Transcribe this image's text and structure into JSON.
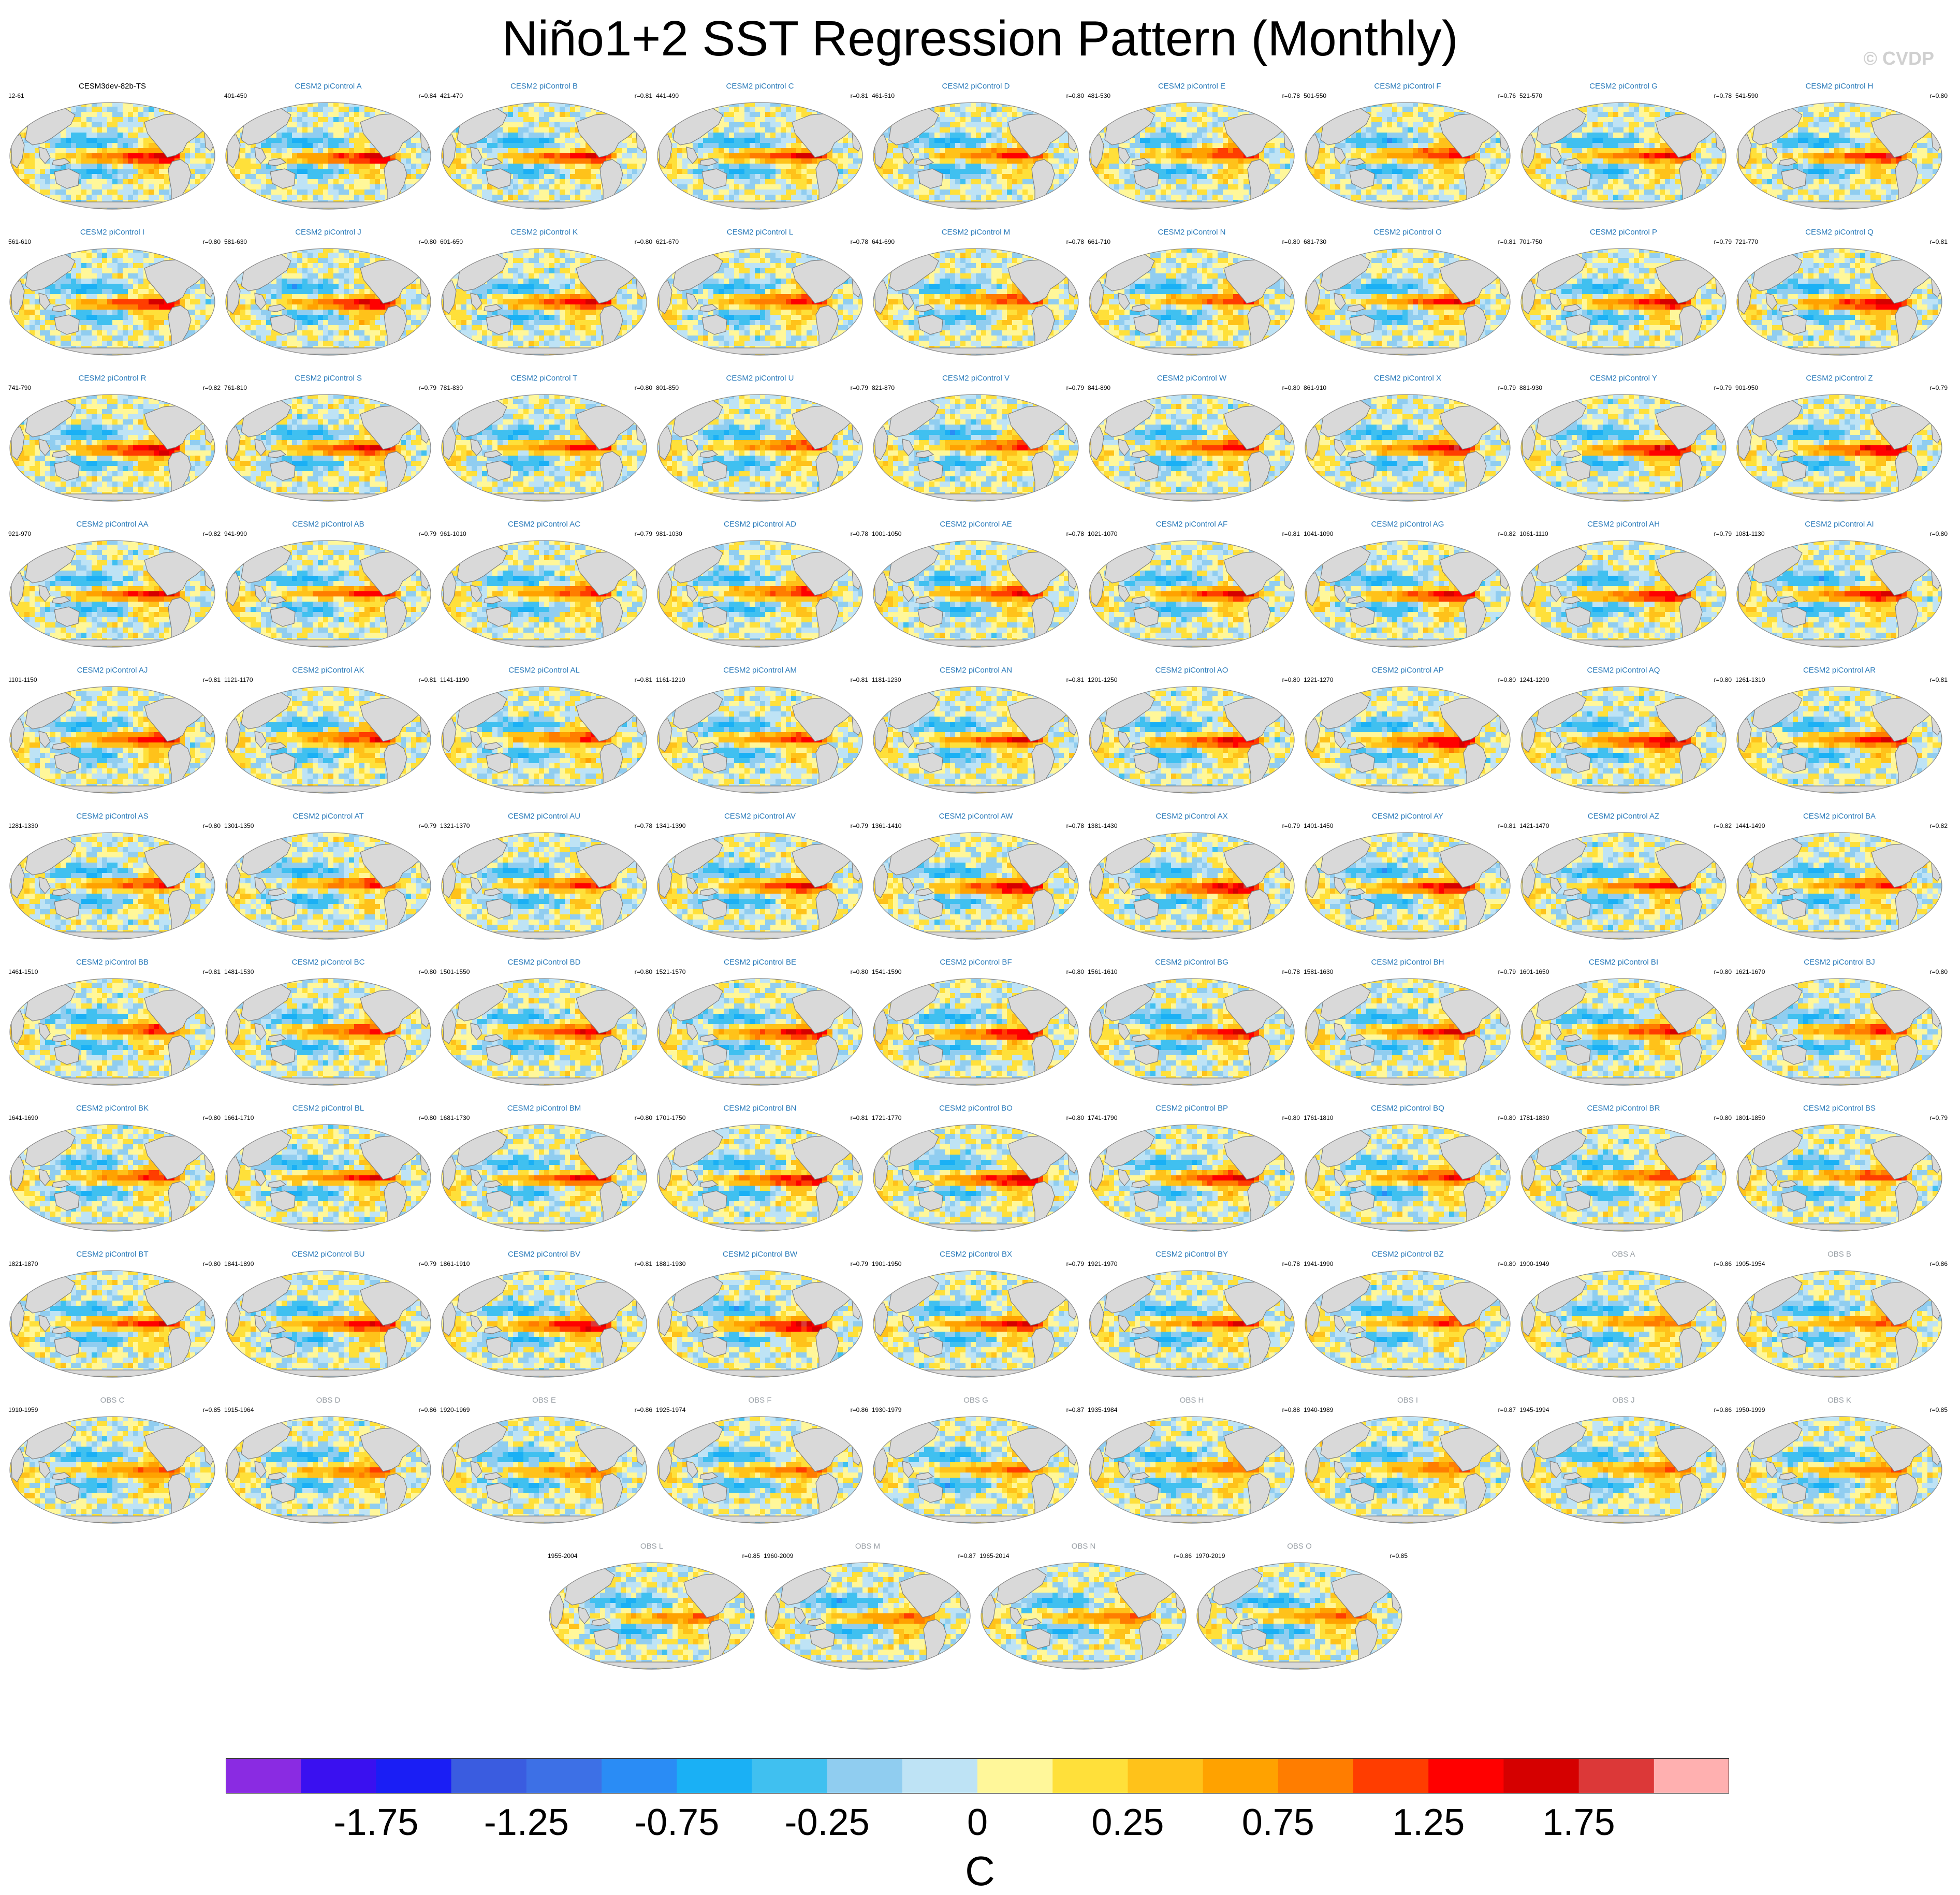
{
  "title": "Niño1+2 SST Regression Pattern (Monthly)",
  "copyright": "© CVDP",
  "colors": {
    "land": "#d9d9d9",
    "coast": "#7d7d7d",
    "model_title": "#2b7bba",
    "obs_title": "#9aa0a6",
    "ref_title": "#000000"
  },
  "chart_data": {
    "type": "heatmap",
    "map_projection": "robinson",
    "panels": [
      {
        "title": "CESM3dev-82b-TS",
        "left": "12-61",
        "right": "",
        "kind": "ref"
      },
      {
        "title": "CESM2 piControl A",
        "left": "401-450",
        "right": "r=0.84",
        "kind": "model"
      },
      {
        "title": "CESM2 piControl B",
        "left": "421-470",
        "right": "r=0.81",
        "kind": "model"
      },
      {
        "title": "CESM2 piControl C",
        "left": "441-490",
        "right": "r=0.81",
        "kind": "model"
      },
      {
        "title": "CESM2 piControl D",
        "left": "461-510",
        "right": "r=0.80",
        "kind": "model"
      },
      {
        "title": "CESM2 piControl E",
        "left": "481-530",
        "right": "r=0.78",
        "kind": "model"
      },
      {
        "title": "CESM2 piControl F",
        "left": "501-550",
        "right": "r=0.76",
        "kind": "model"
      },
      {
        "title": "CESM2 piControl G",
        "left": "521-570",
        "right": "r=0.78",
        "kind": "model"
      },
      {
        "title": "CESM2 piControl H",
        "left": "541-590",
        "right": "r=0.80",
        "kind": "model"
      },
      {
        "title": "CESM2 piControl I",
        "left": "561-610",
        "right": "r=0.80",
        "kind": "model"
      },
      {
        "title": "CESM2 piControl J",
        "left": "581-630",
        "right": "r=0.80",
        "kind": "model"
      },
      {
        "title": "CESM2 piControl K",
        "left": "601-650",
        "right": "r=0.80",
        "kind": "model"
      },
      {
        "title": "CESM2 piControl L",
        "left": "621-670",
        "right": "r=0.78",
        "kind": "model"
      },
      {
        "title": "CESM2 piControl M",
        "left": "641-690",
        "right": "r=0.78",
        "kind": "model"
      },
      {
        "title": "CESM2 piControl N",
        "left": "661-710",
        "right": "r=0.80",
        "kind": "model"
      },
      {
        "title": "CESM2 piControl O",
        "left": "681-730",
        "right": "r=0.81",
        "kind": "model"
      },
      {
        "title": "CESM2 piControl P",
        "left": "701-750",
        "right": "r=0.79",
        "kind": "model"
      },
      {
        "title": "CESM2 piControl Q",
        "left": "721-770",
        "right": "r=0.81",
        "kind": "model"
      },
      {
        "title": "CESM2 piControl R",
        "left": "741-790",
        "right": "r=0.82",
        "kind": "model"
      },
      {
        "title": "CESM2 piControl S",
        "left": "761-810",
        "right": "r=0.79",
        "kind": "model"
      },
      {
        "title": "CESM2 piControl T",
        "left": "781-830",
        "right": "r=0.80",
        "kind": "model"
      },
      {
        "title": "CESM2 piControl U",
        "left": "801-850",
        "right": "r=0.79",
        "kind": "model"
      },
      {
        "title": "CESM2 piControl V",
        "left": "821-870",
        "right": "r=0.79",
        "kind": "model"
      },
      {
        "title": "CESM2 piControl W",
        "left": "841-890",
        "right": "r=0.80",
        "kind": "model"
      },
      {
        "title": "CESM2 piControl X",
        "left": "861-910",
        "right": "r=0.79",
        "kind": "model"
      },
      {
        "title": "CESM2 piControl Y",
        "left": "881-930",
        "right": "r=0.79",
        "kind": "model"
      },
      {
        "title": "CESM2 piControl Z",
        "left": "901-950",
        "right": "r=0.79",
        "kind": "model"
      },
      {
        "title": "CESM2 piControl AA",
        "left": "921-970",
        "right": "r=0.82",
        "kind": "model"
      },
      {
        "title": "CESM2 piControl AB",
        "left": "941-990",
        "right": "r=0.79",
        "kind": "model"
      },
      {
        "title": "CESM2 piControl AC",
        "left": "961-1010",
        "right": "r=0.79",
        "kind": "model"
      },
      {
        "title": "CESM2 piControl AD",
        "left": "981-1030",
        "right": "r=0.78",
        "kind": "model"
      },
      {
        "title": "CESM2 piControl AE",
        "left": "1001-1050",
        "right": "r=0.78",
        "kind": "model"
      },
      {
        "title": "CESM2 piControl AF",
        "left": "1021-1070",
        "right": "r=0.81",
        "kind": "model"
      },
      {
        "title": "CESM2 piControl AG",
        "left": "1041-1090",
        "right": "r=0.82",
        "kind": "model"
      },
      {
        "title": "CESM2 piControl AH",
        "left": "1061-1110",
        "right": "r=0.79",
        "kind": "model"
      },
      {
        "title": "CESM2 piControl AI",
        "left": "1081-1130",
        "right": "r=0.80",
        "kind": "model"
      },
      {
        "title": "CESM2 piControl AJ",
        "left": "1101-1150",
        "right": "r=0.81",
        "kind": "model"
      },
      {
        "title": "CESM2 piControl AK",
        "left": "1121-1170",
        "right": "r=0.81",
        "kind": "model"
      },
      {
        "title": "CESM2 piControl AL",
        "left": "1141-1190",
        "right": "r=0.81",
        "kind": "model"
      },
      {
        "title": "CESM2 piControl AM",
        "left": "1161-1210",
        "right": "r=0.81",
        "kind": "model"
      },
      {
        "title": "CESM2 piControl AN",
        "left": "1181-1230",
        "right": "r=0.81",
        "kind": "model"
      },
      {
        "title": "CESM2 piControl AO",
        "left": "1201-1250",
        "right": "r=0.80",
        "kind": "model"
      },
      {
        "title": "CESM2 piControl AP",
        "left": "1221-1270",
        "right": "r=0.80",
        "kind": "model"
      },
      {
        "title": "CESM2 piControl AQ",
        "left": "1241-1290",
        "right": "r=0.80",
        "kind": "model"
      },
      {
        "title": "CESM2 piControl AR",
        "left": "1261-1310",
        "right": "r=0.81",
        "kind": "model"
      },
      {
        "title": "CESM2 piControl AS",
        "left": "1281-1330",
        "right": "r=0.80",
        "kind": "model"
      },
      {
        "title": "CESM2 piControl AT",
        "left": "1301-1350",
        "right": "r=0.79",
        "kind": "model"
      },
      {
        "title": "CESM2 piControl AU",
        "left": "1321-1370",
        "right": "r=0.78",
        "kind": "model"
      },
      {
        "title": "CESM2 piControl AV",
        "left": "1341-1390",
        "right": "r=0.79",
        "kind": "model"
      },
      {
        "title": "CESM2 piControl AW",
        "left": "1361-1410",
        "right": "r=0.78",
        "kind": "model"
      },
      {
        "title": "CESM2 piControl AX",
        "left": "1381-1430",
        "right": "r=0.79",
        "kind": "model"
      },
      {
        "title": "CESM2 piControl AY",
        "left": "1401-1450",
        "right": "r=0.81",
        "kind": "model"
      },
      {
        "title": "CESM2 piControl AZ",
        "left": "1421-1470",
        "right": "r=0.82",
        "kind": "model"
      },
      {
        "title": "CESM2 piControl BA",
        "left": "1441-1490",
        "right": "r=0.82",
        "kind": "model"
      },
      {
        "title": "CESM2 piControl BB",
        "left": "1461-1510",
        "right": "r=0.81",
        "kind": "model"
      },
      {
        "title": "CESM2 piControl BC",
        "left": "1481-1530",
        "right": "r=0.80",
        "kind": "model"
      },
      {
        "title": "CESM2 piControl BD",
        "left": "1501-1550",
        "right": "r=0.80",
        "kind": "model"
      },
      {
        "title": "CESM2 piControl BE",
        "left": "1521-1570",
        "right": "r=0.80",
        "kind": "model"
      },
      {
        "title": "CESM2 piControl BF",
        "left": "1541-1590",
        "right": "r=0.80",
        "kind": "model"
      },
      {
        "title": "CESM2 piControl BG",
        "left": "1561-1610",
        "right": "r=0.78",
        "kind": "model"
      },
      {
        "title": "CESM2 piControl BH",
        "left": "1581-1630",
        "right": "r=0.79",
        "kind": "model"
      },
      {
        "title": "CESM2 piControl BI",
        "left": "1601-1650",
        "right": "r=0.80",
        "kind": "model"
      },
      {
        "title": "CESM2 piControl BJ",
        "left": "1621-1670",
        "right": "r=0.80",
        "kind": "model"
      },
      {
        "title": "CESM2 piControl BK",
        "left": "1641-1690",
        "right": "r=0.80",
        "kind": "model"
      },
      {
        "title": "CESM2 piControl BL",
        "left": "1661-1710",
        "right": "r=0.80",
        "kind": "model"
      },
      {
        "title": "CESM2 piControl BM",
        "left": "1681-1730",
        "right": "r=0.80",
        "kind": "model"
      },
      {
        "title": "CESM2 piControl BN",
        "left": "1701-1750",
        "right": "r=0.81",
        "kind": "model"
      },
      {
        "title": "CESM2 piControl BO",
        "left": "1721-1770",
        "right": "r=0.80",
        "kind": "model"
      },
      {
        "title": "CESM2 piControl BP",
        "left": "1741-1790",
        "right": "r=0.80",
        "kind": "model"
      },
      {
        "title": "CESM2 piControl BQ",
        "left": "1761-1810",
        "right": "r=0.80",
        "kind": "model"
      },
      {
        "title": "CESM2 piControl BR",
        "left": "1781-1830",
        "right": "r=0.80",
        "kind": "model"
      },
      {
        "title": "CESM2 piControl BS",
        "left": "1801-1850",
        "right": "r=0.79",
        "kind": "model"
      },
      {
        "title": "CESM2 piControl BT",
        "left": "1821-1870",
        "right": "r=0.80",
        "kind": "model"
      },
      {
        "title": "CESM2 piControl BU",
        "left": "1841-1890",
        "right": "r=0.79",
        "kind": "model"
      },
      {
        "title": "CESM2 piControl BV",
        "left": "1861-1910",
        "right": "r=0.81",
        "kind": "model"
      },
      {
        "title": "CESM2 piControl BW",
        "left": "1881-1930",
        "right": "r=0.79",
        "kind": "model"
      },
      {
        "title": "CESM2 piControl BX",
        "left": "1901-1950",
        "right": "r=0.79",
        "kind": "model"
      },
      {
        "title": "CESM2 piControl BY",
        "left": "1921-1970",
        "right": "r=0.78",
        "kind": "model"
      },
      {
        "title": "CESM2 piControl BZ",
        "left": "1941-1990",
        "right": "r=0.80",
        "kind": "model"
      },
      {
        "title": "OBS A",
        "left": "1900-1949",
        "right": "r=0.86",
        "kind": "obs"
      },
      {
        "title": "OBS B",
        "left": "1905-1954",
        "right": "r=0.86",
        "kind": "obs"
      },
      {
        "title": "OBS C",
        "left": "1910-1959",
        "right": "r=0.85",
        "kind": "obs"
      },
      {
        "title": "OBS D",
        "left": "1915-1964",
        "right": "r=0.86",
        "kind": "obs"
      },
      {
        "title": "OBS E",
        "left": "1920-1969",
        "right": "r=0.86",
        "kind": "obs"
      },
      {
        "title": "OBS F",
        "left": "1925-1974",
        "right": "r=0.86",
        "kind": "obs"
      },
      {
        "title": "OBS G",
        "left": "1930-1979",
        "right": "r=0.87",
        "kind": "obs"
      },
      {
        "title": "OBS H",
        "left": "1935-1984",
        "right": "r=0.88",
        "kind": "obs"
      },
      {
        "title": "OBS I",
        "left": "1940-1989",
        "right": "r=0.87",
        "kind": "obs"
      },
      {
        "title": "OBS J",
        "left": "1945-1994",
        "right": "r=0.86",
        "kind": "obs"
      },
      {
        "title": "OBS K",
        "left": "1950-1999",
        "right": "r=0.85",
        "kind": "obs"
      },
      {
        "title": "OBS L",
        "left": "1955-2004",
        "right": "r=0.85",
        "kind": "obs"
      },
      {
        "title": "OBS M",
        "left": "1960-2009",
        "right": "r=0.87",
        "kind": "obs"
      },
      {
        "title": "OBS N",
        "left": "1965-2014",
        "right": "r=0.86",
        "kind": "obs"
      },
      {
        "title": "OBS O",
        "left": "1970-2019",
        "right": "r=0.85",
        "kind": "obs"
      }
    ],
    "colorbar": {
      "units": "C",
      "tick_labels": [
        "-1.75",
        "-1.25",
        "-0.75",
        "-0.25",
        "0",
        "0.25",
        "0.75",
        "1.25",
        "1.75"
      ],
      "tick_positions": [
        -1.75,
        -1.25,
        -0.75,
        -0.25,
        0,
        0.25,
        0.75,
        1.25,
        1.75
      ],
      "bin_edges": [
        -2.25,
        -2,
        -1.75,
        -1.5,
        -1.25,
        -1,
        -0.75,
        -0.5,
        -0.25,
        -0.1,
        0,
        0.1,
        0.25,
        0.5,
        0.75,
        1,
        1.25,
        1.5,
        1.75,
        2,
        2.25
      ],
      "colors": [
        "#8a2be2",
        "#3a10f0",
        "#1a1ef5",
        "#3a5ce0",
        "#3d70e6",
        "#2a8cf5",
        "#1ab0f5",
        "#40c0f0",
        "#90cdf0",
        "#bee3f5",
        "#fff79a",
        "#ffe03a",
        "#ffc21a",
        "#ffa200",
        "#ff7d00",
        "#ff3d00",
        "#ff0000",
        "#d50000",
        "#dc3838",
        "#ffb0b0"
      ]
    }
  }
}
